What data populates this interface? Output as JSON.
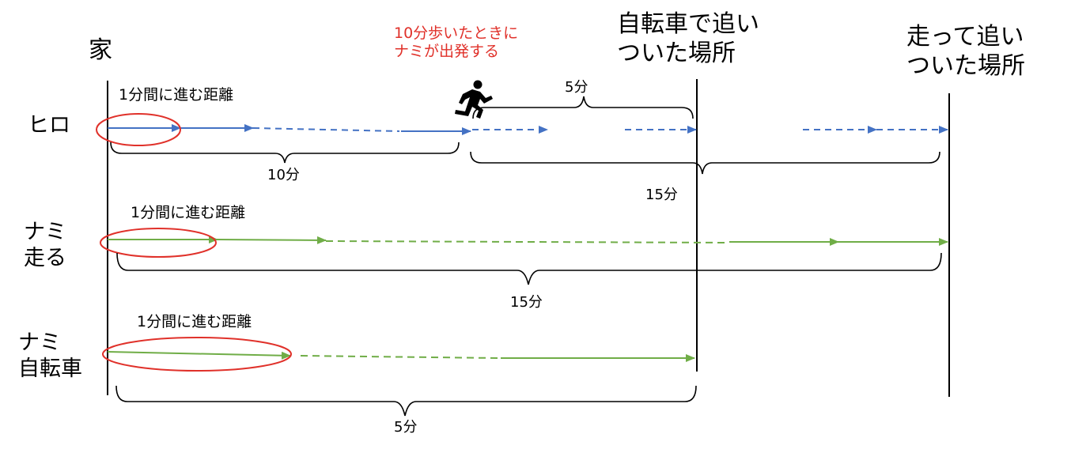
{
  "labels": {
    "home": "家",
    "start_note": "10分歩いたときに\nナミが出発する",
    "bike_catch": "自転車で追い\nついた場所",
    "run_catch": "走って追い\nついた場所",
    "row_hiro": "ヒロ",
    "row_run": "ナミ\n走る",
    "row_bike": "ナミ\n自転車",
    "dist_per_min": "1分間に進む距離"
  },
  "durations": {
    "hiro_before": "10分",
    "hiro_after": "15分",
    "gap": "5分",
    "run": "15分",
    "bike": "5分"
  },
  "icons": {
    "runner": "running-person-icon"
  },
  "colors": {
    "hiro": "#4472c4",
    "nami": "#70ad47",
    "highlight": "#e0312a",
    "line": "#000000"
  }
}
